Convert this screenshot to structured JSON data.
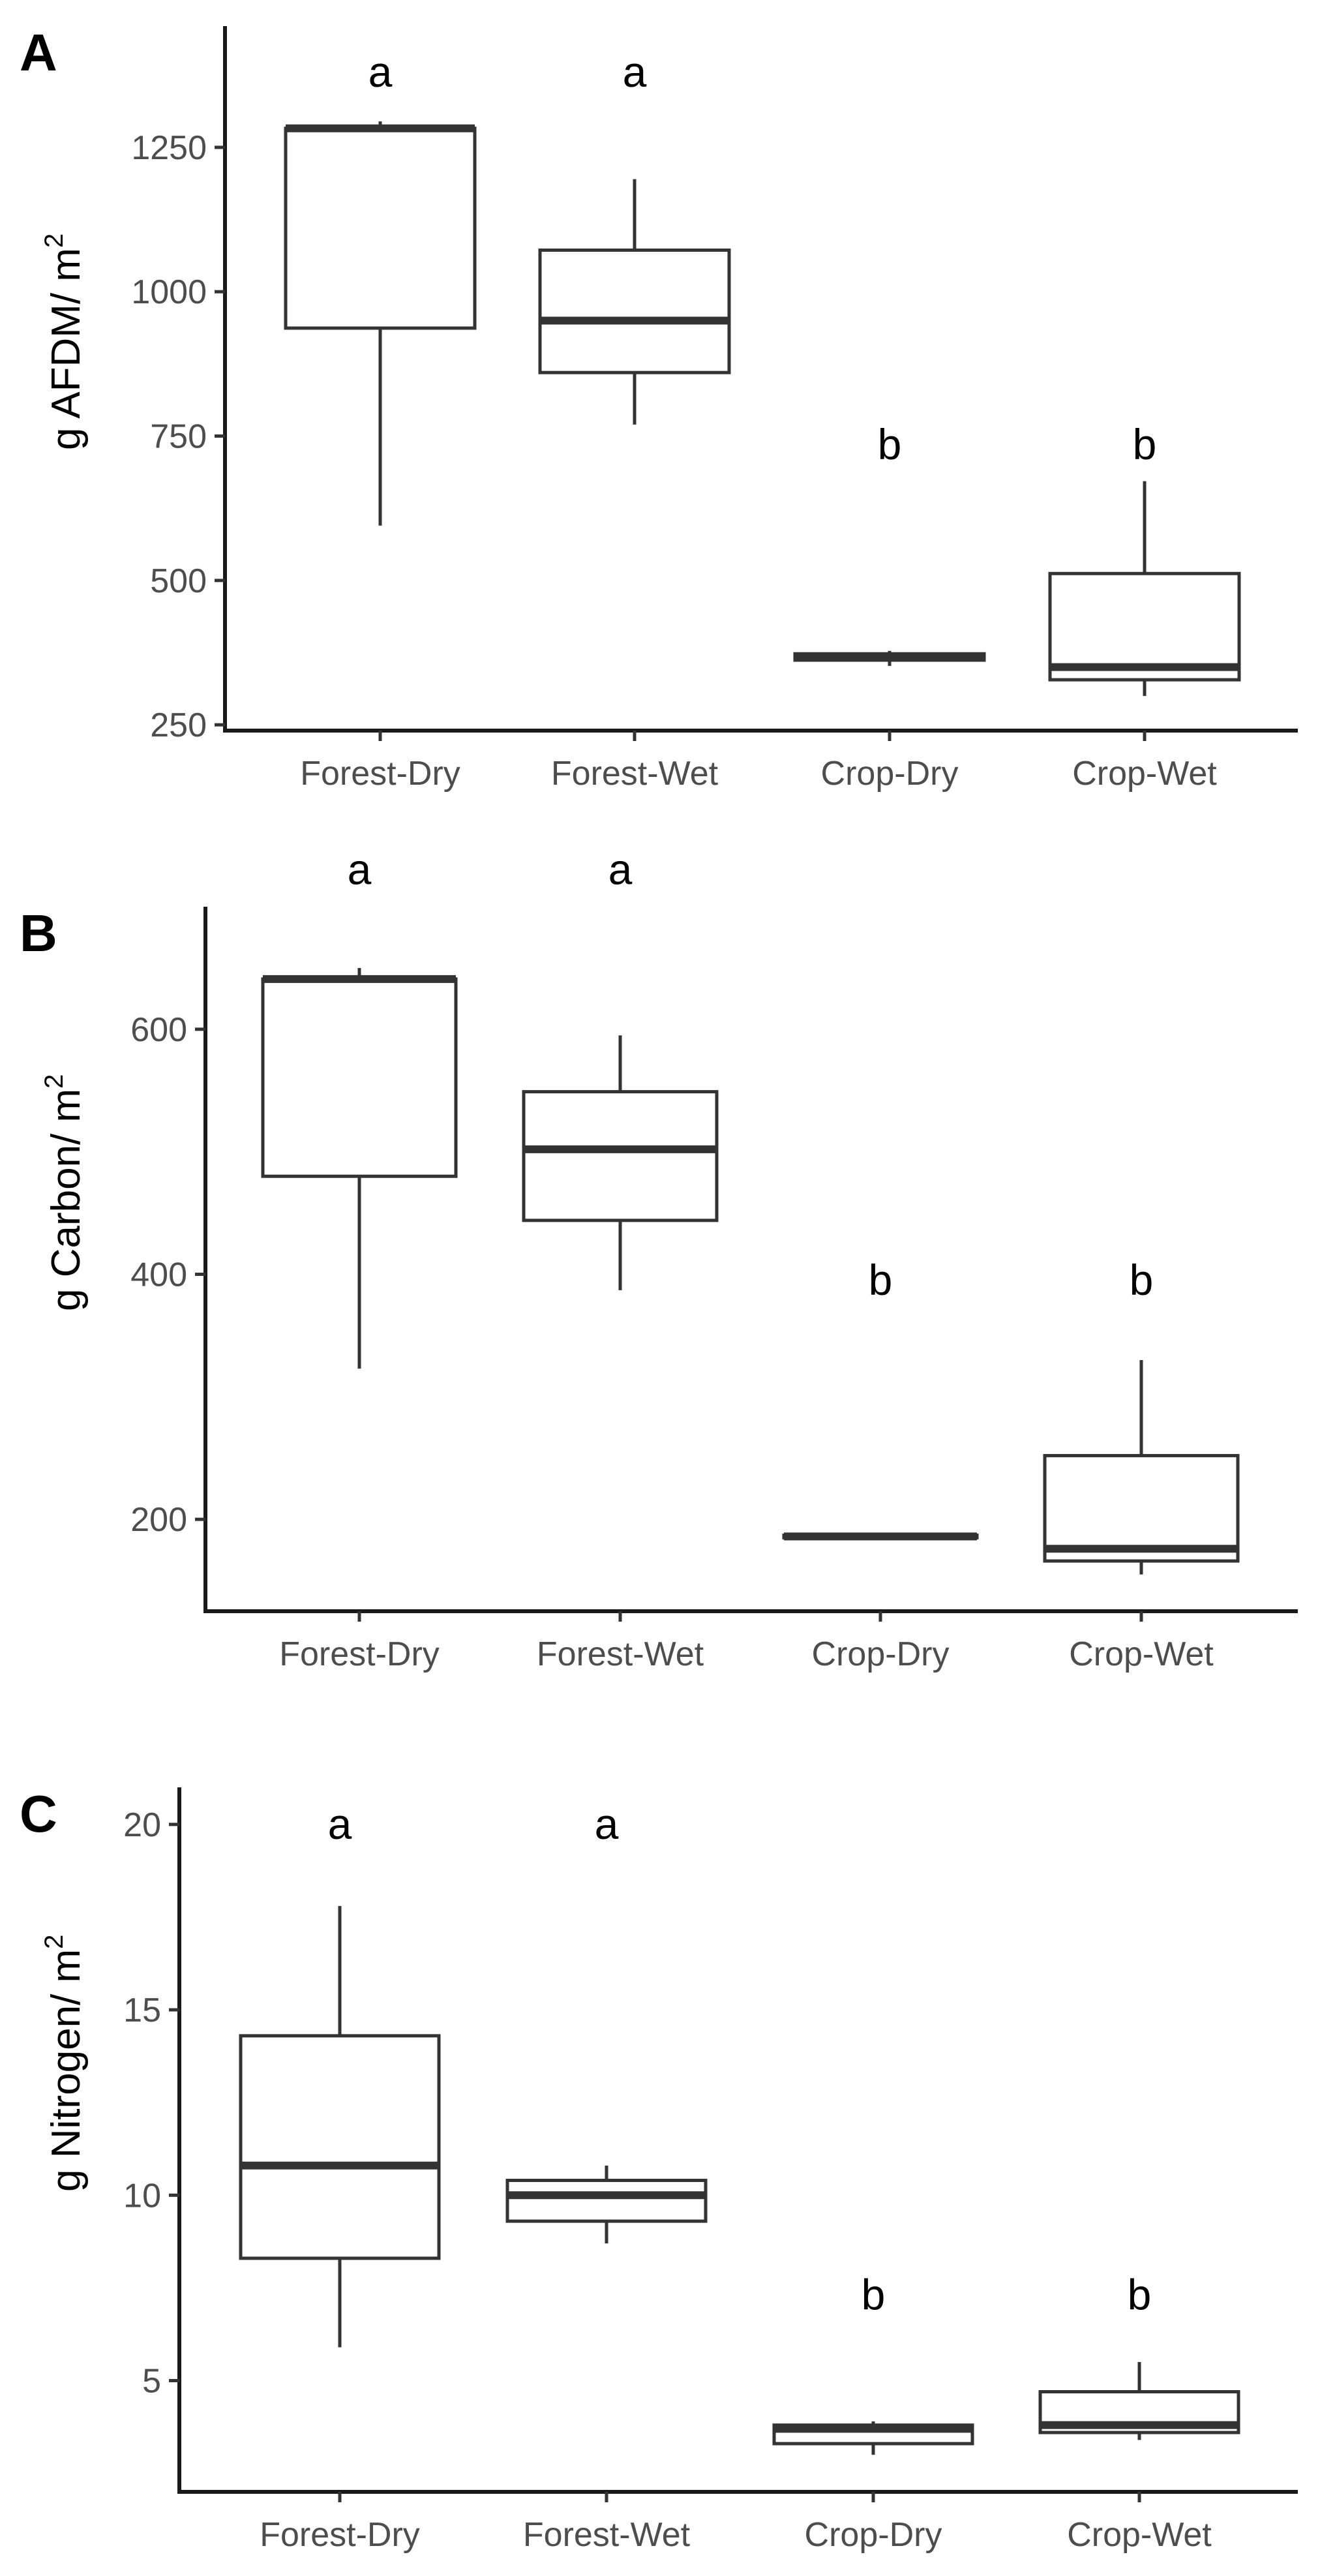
{
  "chart_data": [
    {
      "type": "boxplot",
      "panel_label": "A",
      "ylabel_text": "g AFDM/ m",
      "ylabel_sup": "2",
      "categories": [
        "Forest-Dry",
        "Forest-Wet",
        "Crop-Dry",
        "Crop-Wet"
      ],
      "ylim": [
        240,
        1460
      ],
      "yticks": [
        250,
        500,
        750,
        1000,
        1250
      ],
      "letters": [
        "a",
        "a",
        "b",
        "b"
      ],
      "letter_y": [
        1380,
        1380,
        735,
        735
      ],
      "boxes": [
        {
          "min": 595,
          "q1": 937,
          "median": 1283,
          "q3": 1283,
          "max": 1295
        },
        {
          "min": 770,
          "q1": 860,
          "median": 950,
          "q3": 1072,
          "max": 1195
        },
        {
          "min": 352,
          "q1": 362,
          "median": 368,
          "q3": 373,
          "max": 378
        },
        {
          "min": 300,
          "q1": 328,
          "median": 350,
          "q3": 512,
          "max": 672
        }
      ]
    },
    {
      "type": "boxplot",
      "panel_label": "B",
      "ylabel_text": "g Carbon/ m",
      "ylabel_sup": "2",
      "categories": [
        "Forest-Dry",
        "Forest-Wet",
        "Crop-Dry",
        "Crop-Wet"
      ],
      "ylim": [
        125,
        700
      ],
      "yticks": [
        200,
        400,
        600
      ],
      "letters": [
        "a",
        "a",
        "b",
        "b"
      ],
      "letter_y": [
        730,
        730,
        395,
        395
      ],
      "boxes": [
        {
          "min": 323,
          "q1": 480,
          "median": 641,
          "q3": 641,
          "max": 650
        },
        {
          "min": 387,
          "q1": 444,
          "median": 502,
          "q3": 549,
          "max": 595
        },
        {
          "min": 185,
          "q1": 185,
          "median": 186,
          "q3": 187,
          "max": 188
        },
        {
          "min": 155,
          "q1": 166,
          "median": 176,
          "q3": 252,
          "max": 330
        }
      ]
    },
    {
      "type": "boxplot",
      "panel_label": "C",
      "ylabel_text": "g Nitrogen/ m",
      "ylabel_sup": "2",
      "categories": [
        "Forest-Dry",
        "Forest-Wet",
        "Crop-Dry",
        "Crop-Wet"
      ],
      "ylim": [
        2.0,
        21.0
      ],
      "yticks": [
        5,
        10,
        15,
        20
      ],
      "letters": [
        "a",
        "a",
        "b",
        "b"
      ],
      "letter_y": [
        20.0,
        20.0,
        7.3,
        7.3
      ],
      "boxes": [
        {
          "min": 5.9,
          "q1": 8.3,
          "median": 10.8,
          "q3": 14.3,
          "max": 17.8
        },
        {
          "min": 8.7,
          "q1": 9.3,
          "median": 10.0,
          "q3": 10.4,
          "max": 10.8
        },
        {
          "min": 3.0,
          "q1": 3.3,
          "median": 3.7,
          "q3": 3.8,
          "max": 3.9
        },
        {
          "min": 3.4,
          "q1": 3.6,
          "median": 3.8,
          "q3": 4.7,
          "max": 5.5
        }
      ]
    }
  ]
}
